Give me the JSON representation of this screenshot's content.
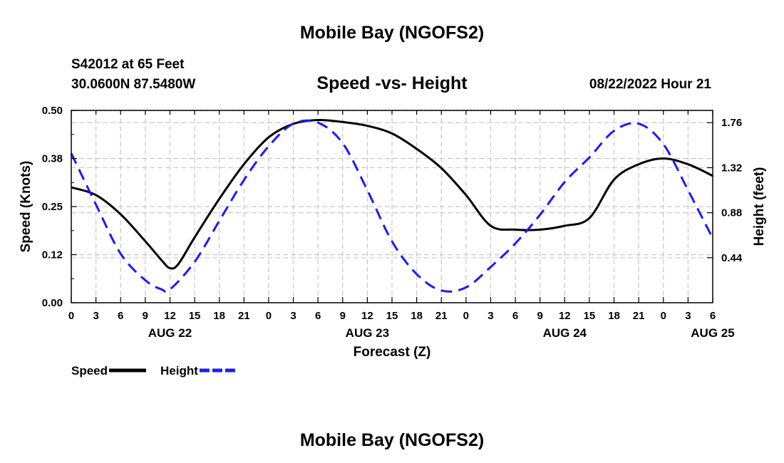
{
  "chart_data": {
    "type": "line",
    "title": "Mobile Bay (NGOFS2)",
    "footer_title": "Mobile Bay (NGOFS2)",
    "subtitle": "Speed -vs- Height",
    "station": "S42012 at 65 Feet",
    "coords": "30.0600N  87.5480W",
    "timestamp": "08/22/2022 Hour 21",
    "xlabel": "Forecast (Z)",
    "ylabel": "Speed (Knots)",
    "y2label": "Height (feet)",
    "xlim": [
      0,
      78
    ],
    "ylim": [
      0,
      0.5
    ],
    "y2lim": [
      0,
      1.88
    ],
    "xticks": [
      0,
      3,
      6,
      9,
      12,
      15,
      18,
      21,
      24,
      27,
      30,
      33,
      36,
      39,
      42,
      45,
      48,
      51,
      54,
      57,
      60,
      63,
      66,
      69,
      72,
      75,
      78
    ],
    "xtick_labels": [
      "0",
      "3",
      "6",
      "9",
      "12",
      "15",
      "18",
      "21",
      "0",
      "3",
      "6",
      "9",
      "12",
      "15",
      "18",
      "21",
      "0",
      "3",
      "6",
      "9",
      "12",
      "15",
      "18",
      "21",
      "0",
      "3",
      "6"
    ],
    "date_labels": [
      {
        "x": 12,
        "label": "AUG 22"
      },
      {
        "x": 36,
        "label": "AUG 23"
      },
      {
        "x": 60,
        "label": "AUG 24"
      },
      {
        "x": 78,
        "label": "AUG 25"
      }
    ],
    "yticks": [
      0.0,
      0.125,
      0.25,
      0.375,
      0.5
    ],
    "ytick_labels": [
      "0.00",
      "0.12",
      "0.25",
      "0.38",
      "0.50"
    ],
    "y2ticks": [
      0.44,
      0.88,
      1.32,
      1.76
    ],
    "y2tick_labels": [
      "0.44",
      "0.88",
      "1.32",
      "1.76"
    ],
    "grid": true,
    "series": [
      {
        "name": "Speed",
        "axis": "left",
        "color": "#000000",
        "dash": "solid",
        "x": [
          0,
          3,
          6,
          9,
          11,
          12,
          13,
          15,
          18,
          21,
          24,
          27,
          30,
          33,
          36,
          39,
          42,
          45,
          48,
          51,
          54,
          57,
          60,
          63,
          66,
          69,
          72,
          75,
          78
        ],
        "values": [
          0.3,
          0.28,
          0.23,
          0.16,
          0.11,
          0.09,
          0.1,
          0.17,
          0.27,
          0.36,
          0.43,
          0.465,
          0.475,
          0.47,
          0.46,
          0.44,
          0.4,
          0.35,
          0.28,
          0.2,
          0.19,
          0.19,
          0.2,
          0.22,
          0.32,
          0.36,
          0.375,
          0.36,
          0.33
        ]
      },
      {
        "name": "Height",
        "axis": "right",
        "color": "#1a1aff",
        "dash": "dashed",
        "x": [
          0,
          3,
          6,
          9,
          11,
          12,
          15,
          18,
          21,
          24,
          27,
          30,
          33,
          36,
          39,
          42,
          45,
          48,
          51,
          54,
          57,
          60,
          63,
          66,
          69,
          72,
          75,
          78
        ],
        "values": [
          1.46,
          0.96,
          0.48,
          0.22,
          0.13,
          0.13,
          0.4,
          0.8,
          1.2,
          1.53,
          1.75,
          1.76,
          1.56,
          1.1,
          0.6,
          0.28,
          0.12,
          0.15,
          0.35,
          0.58,
          0.86,
          1.18,
          1.42,
          1.68,
          1.75,
          1.55,
          1.1,
          0.63
        ]
      }
    ],
    "legend": [
      {
        "label": "Speed",
        "color": "#000000",
        "dash": "solid"
      },
      {
        "label": "Height",
        "color": "#1a1aff",
        "dash": "dashed"
      }
    ],
    "legend_position": "bottom-left"
  }
}
